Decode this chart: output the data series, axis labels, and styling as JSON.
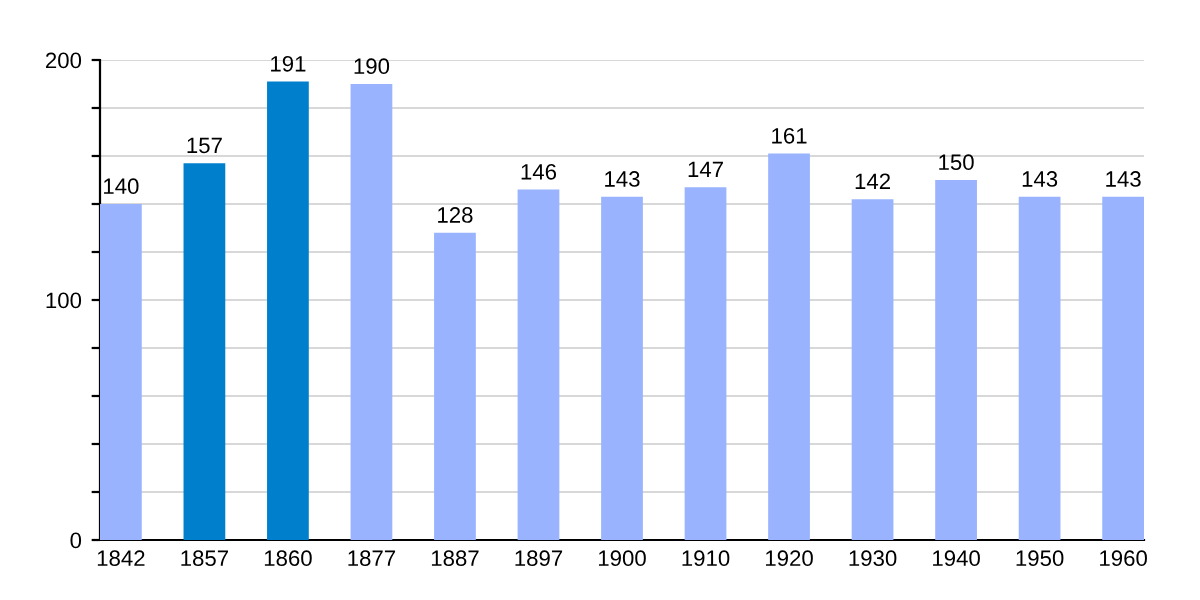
{
  "chart_data": {
    "type": "bar",
    "categories": [
      "1842",
      "1857",
      "1860",
      "1877",
      "1887",
      "1897",
      "1900",
      "1910",
      "1920",
      "1930",
      "1940",
      "1950",
      "1960"
    ],
    "values": [
      140,
      157,
      191,
      190,
      128,
      146,
      143,
      147,
      161,
      142,
      150,
      143,
      143
    ],
    "colors": [
      "#99b3ff",
      "#0080cc",
      "#0080cc",
      "#99b3ff",
      "#99b3ff",
      "#99b3ff",
      "#99b3ff",
      "#99b3ff",
      "#99b3ff",
      "#99b3ff",
      "#99b3ff",
      "#99b3ff",
      "#99b3ff"
    ],
    "ylim": [
      0,
      200
    ],
    "yticks": [
      0,
      {
        "value": 20,
        "label": null
      },
      {
        "value": 40,
        "label": null
      },
      {
        "value": 60,
        "label": null
      },
      {
        "value": 80,
        "label": null
      },
      100,
      {
        "value": 120,
        "label": null
      },
      {
        "value": 140,
        "label": null
      },
      {
        "value": 160,
        "label": null
      },
      {
        "value": 180,
        "label": null
      },
      200
    ],
    "grid": "y",
    "data_labels": true
  }
}
